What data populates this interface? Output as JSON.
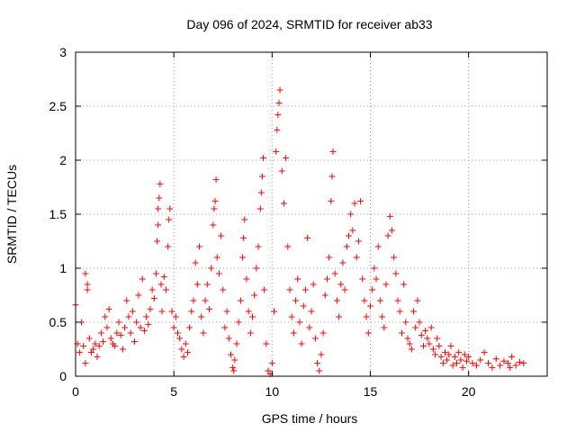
{
  "chart_data": {
    "type": "scatter",
    "title": "Day 096 of 2024, SRMTID for receiver ab33",
    "xlabel": "GPS time / hours",
    "ylabel": "SRMTID / TECUs",
    "xlim": [
      0,
      24
    ],
    "ylim": [
      0,
      3
    ],
    "x_ticks": [
      0,
      5,
      10,
      15,
      20
    ],
    "x_tick_labels": [
      "0",
      "5",
      "10",
      "15",
      "20"
    ],
    "y_ticks": [
      0,
      0.5,
      1,
      1.5,
      2,
      2.5,
      3
    ],
    "y_tick_labels": [
      "0",
      "0.5",
      "1",
      "1.5",
      "2",
      "2.5",
      "3"
    ],
    "grid": true,
    "marker": "+",
    "series": [
      {
        "name": "SRMTID",
        "color": "#ff0000",
        "points": [
          [
            0.0,
            0.66
          ],
          [
            0.1,
            0.3
          ],
          [
            0.2,
            0.22
          ],
          [
            0.3,
            0.5
          ],
          [
            0.4,
            0.28
          ],
          [
            0.5,
            0.12
          ],
          [
            0.5,
            0.95
          ],
          [
            0.6,
            0.85
          ],
          [
            0.6,
            0.8
          ],
          [
            0.7,
            0.35
          ],
          [
            0.8,
            0.22
          ],
          [
            0.9,
            0.25
          ],
          [
            1.0,
            0.3
          ],
          [
            1.1,
            0.18
          ],
          [
            1.2,
            0.28
          ],
          [
            1.3,
            0.4
          ],
          [
            1.4,
            0.32
          ],
          [
            1.5,
            0.55
          ],
          [
            1.6,
            0.45
          ],
          [
            1.7,
            0.62
          ],
          [
            1.8,
            0.35
          ],
          [
            1.9,
            0.3
          ],
          [
            2.0,
            0.28
          ],
          [
            2.1,
            0.4
          ],
          [
            2.2,
            0.5
          ],
          [
            2.3,
            0.38
          ],
          [
            2.4,
            0.25
          ],
          [
            2.5,
            0.45
          ],
          [
            2.6,
            0.7
          ],
          [
            2.7,
            0.55
          ],
          [
            2.8,
            0.4
          ],
          [
            2.9,
            0.6
          ],
          [
            3.0,
            0.32
          ],
          [
            3.1,
            0.5
          ],
          [
            3.2,
            0.75
          ],
          [
            3.3,
            0.45
          ],
          [
            3.4,
            0.9
          ],
          [
            3.5,
            0.42
          ],
          [
            3.6,
            0.55
          ],
          [
            3.7,
            0.48
          ],
          [
            3.8,
            0.62
          ],
          [
            3.9,
            0.8
          ],
          [
            4.0,
            0.72
          ],
          [
            4.1,
            0.95
          ],
          [
            4.15,
            1.25
          ],
          [
            4.2,
            1.4
          ],
          [
            4.2,
            1.55
          ],
          [
            4.25,
            1.65
          ],
          [
            4.3,
            1.78
          ],
          [
            4.35,
            0.85
          ],
          [
            4.4,
            0.6
          ],
          [
            4.5,
            0.92
          ],
          [
            4.6,
            0.8
          ],
          [
            4.7,
            1.2
          ],
          [
            4.75,
            1.45
          ],
          [
            4.8,
            1.55
          ],
          [
            4.9,
            0.6
          ],
          [
            5.0,
            0.45
          ],
          [
            5.1,
            0.55
          ],
          [
            5.2,
            0.4
          ],
          [
            5.3,
            0.35
          ],
          [
            5.4,
            0.25
          ],
          [
            5.5,
            0.18
          ],
          [
            5.6,
            0.3
          ],
          [
            5.7,
            0.22
          ],
          [
            5.8,
            0.45
          ],
          [
            5.9,
            0.6
          ],
          [
            6.0,
            0.7
          ],
          [
            6.1,
            1.05
          ],
          [
            6.2,
            0.85
          ],
          [
            6.3,
            1.2
          ],
          [
            6.4,
            0.55
          ],
          [
            6.5,
            0.4
          ],
          [
            6.6,
            0.7
          ],
          [
            6.7,
            0.85
          ],
          [
            6.8,
            0.62
          ],
          [
            6.9,
            1.0
          ],
          [
            7.0,
            1.4
          ],
          [
            7.05,
            1.55
          ],
          [
            7.1,
            1.62
          ],
          [
            7.15,
            1.82
          ],
          [
            7.2,
            1.1
          ],
          [
            7.3,
            0.95
          ],
          [
            7.4,
            1.3
          ],
          [
            7.5,
            0.8
          ],
          [
            7.6,
            0.45
          ],
          [
            7.7,
            0.6
          ],
          [
            7.8,
            0.35
          ],
          [
            7.9,
            0.2
          ],
          [
            8.0,
            0.08
          ],
          [
            8.05,
            0.05
          ],
          [
            8.1,
            0.15
          ],
          [
            8.2,
            0.3
          ],
          [
            8.3,
            0.5
          ],
          [
            8.4,
            0.7
          ],
          [
            8.5,
            1.1
          ],
          [
            8.55,
            1.28
          ],
          [
            8.6,
            1.45
          ],
          [
            8.7,
            0.9
          ],
          [
            8.8,
            0.6
          ],
          [
            8.9,
            0.4
          ],
          [
            9.0,
            0.55
          ],
          [
            9.1,
            0.75
          ],
          [
            9.2,
            1.0
          ],
          [
            9.3,
            1.2
          ],
          [
            9.4,
            1.55
          ],
          [
            9.45,
            1.7
          ],
          [
            9.5,
            1.85
          ],
          [
            9.55,
            2.02
          ],
          [
            9.6,
            0.8
          ],
          [
            9.7,
            0.3
          ],
          [
            9.8,
            0.05
          ],
          [
            9.9,
            0.02
          ],
          [
            10.0,
            0.12
          ],
          [
            10.1,
            0.6
          ],
          [
            10.2,
            2.08
          ],
          [
            10.25,
            2.28
          ],
          [
            10.3,
            2.42
          ],
          [
            10.35,
            2.53
          ],
          [
            10.4,
            2.65
          ],
          [
            10.5,
            1.9
          ],
          [
            10.6,
            1.6
          ],
          [
            10.7,
            2.02
          ],
          [
            10.8,
            1.2
          ],
          [
            10.9,
            0.8
          ],
          [
            11.0,
            0.55
          ],
          [
            11.1,
            0.4
          ],
          [
            11.2,
            0.7
          ],
          [
            11.3,
            0.9
          ],
          [
            11.4,
            0.5
          ],
          [
            11.5,
            0.3
          ],
          [
            11.6,
            0.65
          ],
          [
            11.7,
            0.8
          ],
          [
            11.8,
            1.28
          ],
          [
            11.9,
            0.45
          ],
          [
            12.0,
            0.6
          ],
          [
            12.1,
            0.85
          ],
          [
            12.2,
            0.35
          ],
          [
            12.3,
            0.12
          ],
          [
            12.4,
            0.05
          ],
          [
            12.5,
            0.2
          ],
          [
            12.6,
            0.4
          ],
          [
            12.7,
            0.75
          ],
          [
            12.8,
            0.9
          ],
          [
            12.9,
            1.1
          ],
          [
            13.0,
            1.62
          ],
          [
            13.05,
            1.85
          ],
          [
            13.1,
            2.08
          ],
          [
            13.2,
            0.95
          ],
          [
            13.3,
            0.7
          ],
          [
            13.4,
            0.55
          ],
          [
            13.5,
            0.85
          ],
          [
            13.6,
            1.05
          ],
          [
            13.7,
            0.8
          ],
          [
            13.8,
            1.2
          ],
          [
            13.9,
            1.3
          ],
          [
            14.0,
            1.5
          ],
          [
            14.1,
            1.35
          ],
          [
            14.2,
            1.6
          ],
          [
            14.3,
            1.1
          ],
          [
            14.4,
            1.25
          ],
          [
            14.5,
            1.62
          ],
          [
            14.6,
            0.9
          ],
          [
            14.7,
            0.7
          ],
          [
            14.8,
            0.55
          ],
          [
            14.9,
            0.4
          ],
          [
            15.0,
            0.65
          ],
          [
            15.1,
            0.8
          ],
          [
            15.2,
            1.0
          ],
          [
            15.3,
            0.9
          ],
          [
            15.4,
            1.2
          ],
          [
            15.5,
            0.7
          ],
          [
            15.6,
            0.55
          ],
          [
            15.7,
            0.45
          ],
          [
            15.8,
            0.85
          ],
          [
            15.9,
            1.3
          ],
          [
            16.0,
            1.48
          ],
          [
            16.1,
            1.35
          ],
          [
            16.2,
            1.1
          ],
          [
            16.3,
            0.95
          ],
          [
            16.4,
            0.7
          ],
          [
            16.5,
            0.6
          ],
          [
            16.6,
            0.4
          ],
          [
            16.7,
            0.85
          ],
          [
            16.8,
            0.5
          ],
          [
            16.9,
            0.35
          ],
          [
            17.0,
            0.3
          ],
          [
            17.1,
            0.25
          ],
          [
            17.2,
            0.6
          ],
          [
            17.3,
            0.45
          ],
          [
            17.4,
            0.7
          ],
          [
            17.5,
            0.5
          ],
          [
            17.6,
            0.38
          ],
          [
            17.7,
            0.28
          ],
          [
            17.8,
            0.42
          ],
          [
            17.9,
            0.35
          ],
          [
            18.0,
            0.3
          ],
          [
            18.1,
            0.45
          ],
          [
            18.2,
            0.25
          ],
          [
            18.3,
            0.2
          ],
          [
            18.4,
            0.35
          ],
          [
            18.5,
            0.28
          ],
          [
            18.6,
            0.18
          ],
          [
            18.7,
            0.12
          ],
          [
            18.8,
            0.22
          ],
          [
            18.9,
            0.15
          ],
          [
            19.0,
            0.2
          ],
          [
            19.1,
            0.28
          ],
          [
            19.2,
            0.1
          ],
          [
            19.3,
            0.18
          ],
          [
            19.4,
            0.12
          ],
          [
            19.5,
            0.22
          ],
          [
            19.6,
            0.15
          ],
          [
            19.7,
            0.08
          ],
          [
            19.8,
            0.2
          ],
          [
            19.9,
            0.14
          ],
          [
            20.0,
            0.18
          ],
          [
            20.2,
            0.12
          ],
          [
            20.4,
            0.1
          ],
          [
            20.6,
            0.15
          ],
          [
            20.8,
            0.22
          ],
          [
            21.0,
            0.12
          ],
          [
            21.2,
            0.08
          ],
          [
            21.4,
            0.16
          ],
          [
            21.6,
            0.1
          ],
          [
            21.8,
            0.14
          ],
          [
            22.0,
            0.12
          ],
          [
            22.1,
            0.08
          ],
          [
            22.2,
            0.18
          ],
          [
            22.4,
            0.1
          ],
          [
            22.6,
            0.13
          ],
          [
            22.8,
            0.12
          ]
        ]
      }
    ]
  }
}
